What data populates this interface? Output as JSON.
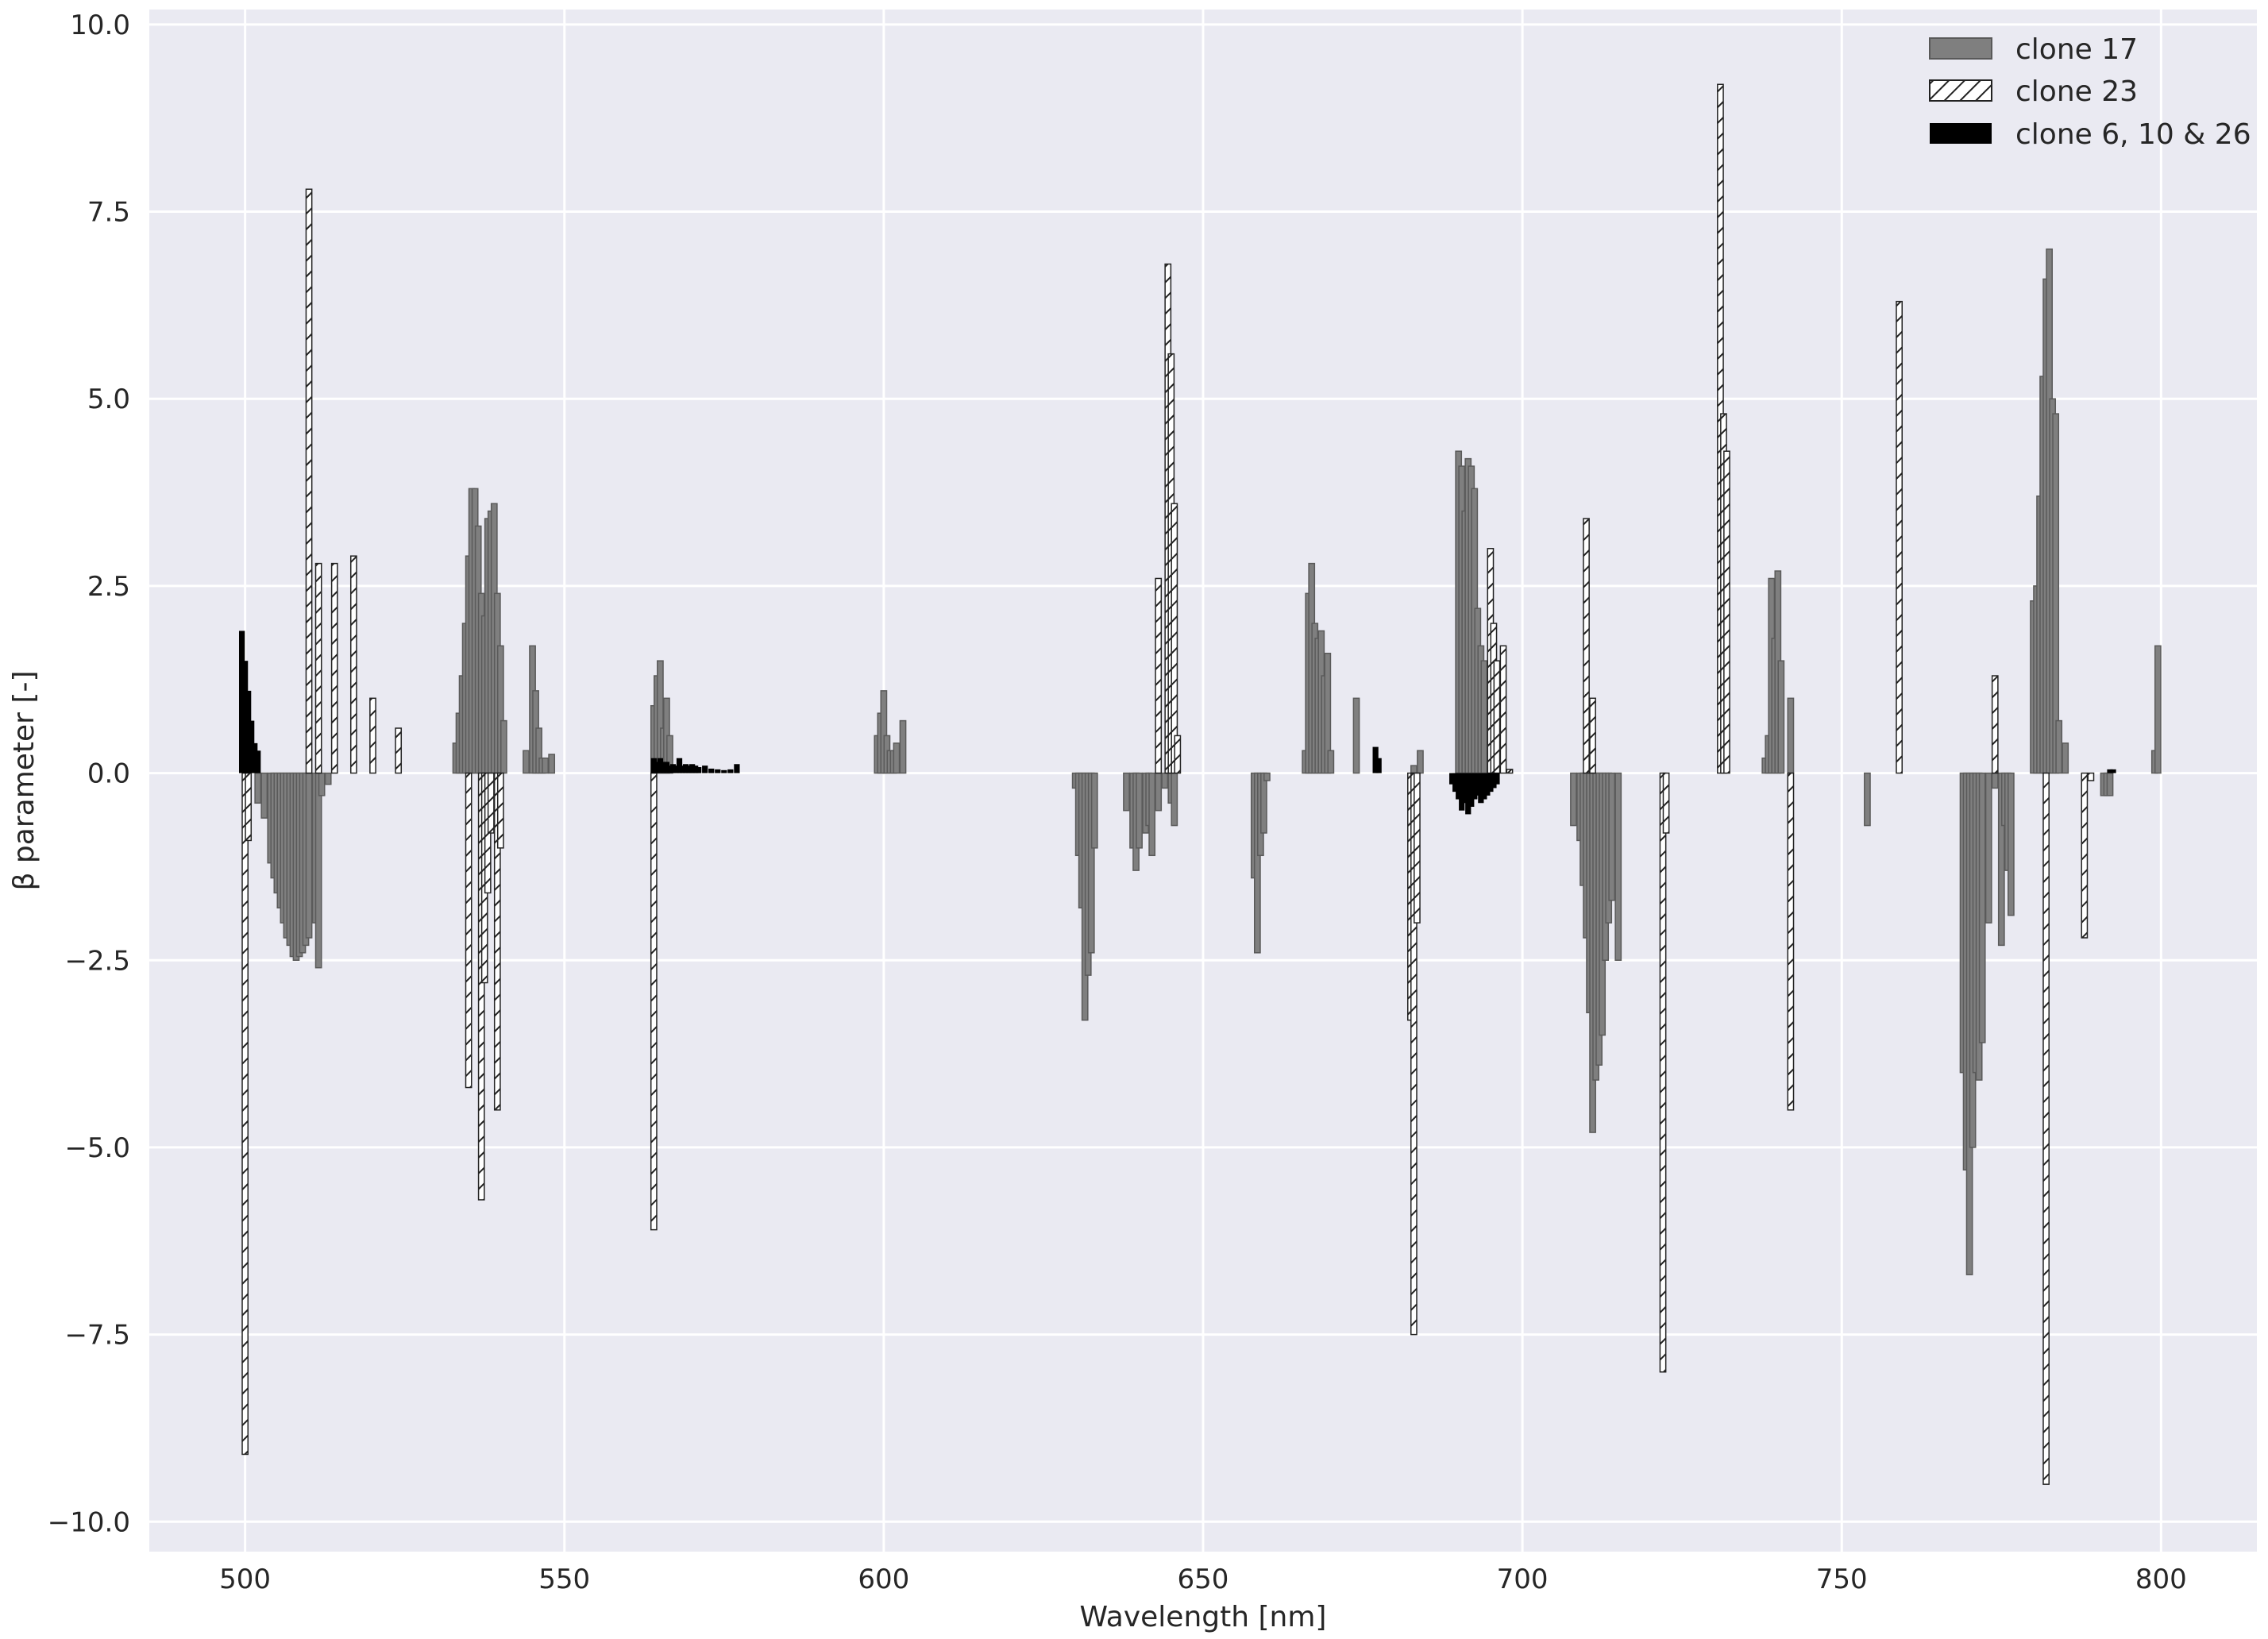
{
  "chart_data": {
    "type": "bar",
    "xlabel": "Wavelength [nm]",
    "ylabel": "β parameter [-]",
    "xlim": [
      485,
      815
    ],
    "ylim": [
      -10.4,
      10.2
    ],
    "xticks": [
      "500",
      "550",
      "600",
      "650",
      "700",
      "750",
      "800"
    ],
    "yticks": [
      "10.0",
      "7.5",
      "5.0",
      "2.5",
      "0.0",
      "−2.5",
      "−5.0",
      "−7.5",
      "−10.0"
    ],
    "grid": true,
    "legend_position": "top-right",
    "background": "#eaeaf2",
    "bar_width_nm": 0.9,
    "series": [
      {
        "name": "clone 17",
        "style": "solid-gray",
        "color": "#7f7f7f",
        "points": [
          [
            502,
            -0.4
          ],
          [
            503,
            -0.6
          ],
          [
            504,
            -1.2
          ],
          [
            504.5,
            -1.4
          ],
          [
            505,
            -1.6
          ],
          [
            505.5,
            -1.8
          ],
          [
            506,
            -2.0
          ],
          [
            506.5,
            -2.2
          ],
          [
            507,
            -2.3
          ],
          [
            507.5,
            -2.45
          ],
          [
            508,
            -2.5
          ],
          [
            508.5,
            -2.45
          ],
          [
            509,
            -2.4
          ],
          [
            509.5,
            -2.3
          ],
          [
            510,
            -2.2
          ],
          [
            511,
            -2.0
          ],
          [
            511.5,
            -2.6
          ],
          [
            512,
            -0.3
          ],
          [
            513,
            -0.15
          ],
          [
            533,
            0.4
          ],
          [
            533.5,
            0.8
          ],
          [
            534,
            1.3
          ],
          [
            534.5,
            2.0
          ],
          [
            535,
            2.9
          ],
          [
            535.5,
            3.8
          ],
          [
            536,
            3.8
          ],
          [
            536.5,
            3.3
          ],
          [
            537,
            2.4
          ],
          [
            537.5,
            2.1
          ],
          [
            538,
            3.4
          ],
          [
            538.5,
            3.5
          ],
          [
            539,
            3.6
          ],
          [
            539.5,
            2.4
          ],
          [
            540,
            1.7
          ],
          [
            540.5,
            0.7
          ],
          [
            544,
            0.3
          ],
          [
            545,
            1.7
          ],
          [
            545.5,
            1.1
          ],
          [
            546,
            0.6
          ],
          [
            546.5,
            0.2
          ],
          [
            547,
            0.2
          ],
          [
            548,
            0.25
          ],
          [
            564,
            0.9
          ],
          [
            564.5,
            1.3
          ],
          [
            565,
            1.5
          ],
          [
            565.5,
            0.6
          ],
          [
            566,
            1.0
          ],
          [
            566.5,
            0.5
          ],
          [
            599,
            0.5
          ],
          [
            599.5,
            0.8
          ],
          [
            600,
            1.1
          ],
          [
            600.5,
            0.5
          ],
          [
            601,
            0.3
          ],
          [
            601.5,
            0.3
          ],
          [
            602,
            0.4
          ],
          [
            603,
            0.7
          ],
          [
            630,
            -0.2
          ],
          [
            630.5,
            -1.1
          ],
          [
            631,
            -1.8
          ],
          [
            631.5,
            -3.3
          ],
          [
            632,
            -2.7
          ],
          [
            632.5,
            -2.4
          ],
          [
            633,
            -1.0
          ],
          [
            638,
            -0.5
          ],
          [
            639,
            -1.0
          ],
          [
            639.5,
            -1.3
          ],
          [
            640,
            -1.0
          ],
          [
            641,
            -0.8
          ],
          [
            641.5,
            -0.7
          ],
          [
            642,
            -1.1
          ],
          [
            643,
            -0.5
          ],
          [
            644,
            -0.2
          ],
          [
            645,
            -0.4
          ],
          [
            645.5,
            -0.7
          ],
          [
            658,
            -1.4
          ],
          [
            658.5,
            -2.4
          ],
          [
            659,
            -1.1
          ],
          [
            659.5,
            -0.8
          ],
          [
            660,
            -0.1
          ],
          [
            666,
            0.3
          ],
          [
            666.5,
            2.4
          ],
          [
            667,
            2.8
          ],
          [
            667.5,
            2.0
          ],
          [
            668,
            1.8
          ],
          [
            668.5,
            1.9
          ],
          [
            669,
            1.3
          ],
          [
            669.5,
            1.6
          ],
          [
            670,
            0.3
          ],
          [
            674,
            1.0
          ],
          [
            683,
            0.1
          ],
          [
            684,
            0.3
          ],
          [
            690,
            4.3
          ],
          [
            690.5,
            4.1
          ],
          [
            691,
            3.5
          ],
          [
            691.5,
            4.2
          ],
          [
            692,
            4.1
          ],
          [
            692.5,
            3.8
          ],
          [
            693,
            2.2
          ],
          [
            693.5,
            1.7
          ],
          [
            694,
            1.5
          ],
          [
            708,
            -0.7
          ],
          [
            709,
            -0.9
          ],
          [
            709.5,
            -1.5
          ],
          [
            710,
            -2.2
          ],
          [
            710.5,
            -3.2
          ],
          [
            711,
            -4.8
          ],
          [
            711.5,
            -4.1
          ],
          [
            712,
            -3.9
          ],
          [
            712.5,
            -3.5
          ],
          [
            713,
            -2.5
          ],
          [
            713.5,
            -2.0
          ],
          [
            714,
            -1.7
          ],
          [
            715,
            -2.5
          ],
          [
            738,
            0.2
          ],
          [
            738.5,
            0.5
          ],
          [
            739,
            2.6
          ],
          [
            739.5,
            1.8
          ],
          [
            740,
            2.7
          ],
          [
            740.5,
            1.5
          ],
          [
            742,
            1.0
          ],
          [
            754,
            -0.7
          ],
          [
            769,
            -4.0
          ],
          [
            769.5,
            -5.3
          ],
          [
            770,
            -6.7
          ],
          [
            770.5,
            -5.0
          ],
          [
            771,
            -4.0
          ],
          [
            771.5,
            -4.1
          ],
          [
            772,
            -3.6
          ],
          [
            773,
            -2.0
          ],
          [
            774,
            -0.2
          ],
          [
            775,
            -2.3
          ],
          [
            775.5,
            -0.7
          ],
          [
            776,
            -1.3
          ],
          [
            776.5,
            -1.9
          ],
          [
            780,
            2.3
          ],
          [
            780.5,
            2.5
          ],
          [
            781,
            3.7
          ],
          [
            781.5,
            5.3
          ],
          [
            782,
            6.6
          ],
          [
            782.5,
            7.0
          ],
          [
            783,
            5.0
          ],
          [
            783.5,
            4.8
          ],
          [
            784,
            0.7
          ],
          [
            785,
            0.4
          ],
          [
            791,
            -0.3
          ],
          [
            791.5,
            -0.3
          ],
          [
            792,
            -0.3
          ],
          [
            799,
            0.3
          ],
          [
            799.5,
            1.7
          ]
        ]
      },
      {
        "name": "clone 23",
        "style": "hatched",
        "color": "#ffffff",
        "points": [
          [
            500,
            -9.1
          ],
          [
            500.5,
            -0.9
          ],
          [
            510,
            7.8
          ],
          [
            511.5,
            2.8
          ],
          [
            514,
            2.8
          ],
          [
            517,
            2.9
          ],
          [
            520,
            1.0
          ],
          [
            524,
            0.6
          ],
          [
            535,
            -4.2
          ],
          [
            537,
            -5.7
          ],
          [
            537.5,
            -2.8
          ],
          [
            538,
            -1.6
          ],
          [
            538.5,
            -0.8
          ],
          [
            539.5,
            -4.5
          ],
          [
            540,
            -1.0
          ],
          [
            564,
            -6.1
          ],
          [
            643,
            2.6
          ],
          [
            644.5,
            6.8
          ],
          [
            645,
            5.6
          ],
          [
            645.5,
            3.6
          ],
          [
            646,
            0.5
          ],
          [
            682.5,
            -3.3
          ],
          [
            683,
            -7.5
          ],
          [
            683.5,
            -2.0
          ],
          [
            695,
            3.0
          ],
          [
            695.5,
            2.0
          ],
          [
            696,
            1.5
          ],
          [
            697,
            1.7
          ],
          [
            698,
            0.05
          ],
          [
            710,
            3.4
          ],
          [
            711,
            1.0
          ],
          [
            722,
            -8.0
          ],
          [
            722.5,
            -0.8
          ],
          [
            731,
            9.2
          ],
          [
            731.5,
            4.8
          ],
          [
            732,
            4.3
          ],
          [
            742,
            -4.5
          ],
          [
            759,
            6.3
          ],
          [
            774,
            1.3
          ],
          [
            782,
            -9.5
          ],
          [
            788,
            -2.2
          ],
          [
            789,
            -0.1
          ]
        ]
      },
      {
        "name": "clone 6, 10 & 26",
        "style": "solid-black",
        "color": "#000000",
        "points": [
          [
            499.5,
            1.9
          ],
          [
            500,
            1.5
          ],
          [
            500.5,
            1.1
          ],
          [
            501,
            0.7
          ],
          [
            501.5,
            0.4
          ],
          [
            502,
            0.3
          ],
          [
            564,
            0.2
          ],
          [
            564.5,
            0.15
          ],
          [
            565,
            0.2
          ],
          [
            565.5,
            0.15
          ],
          [
            566,
            0.15
          ],
          [
            566.5,
            0.1
          ],
          [
            567,
            0.12
          ],
          [
            567.5,
            0.1
          ],
          [
            568,
            0.2
          ],
          [
            568.5,
            0.1
          ],
          [
            569,
            0.12
          ],
          [
            569.5,
            0.1
          ],
          [
            570,
            0.12
          ],
          [
            570.5,
            0.1
          ],
          [
            571,
            0.08
          ],
          [
            572,
            0.1
          ],
          [
            573,
            0.06
          ],
          [
            574,
            0.05
          ],
          [
            575,
            0.04
          ],
          [
            576,
            0.05
          ],
          [
            577,
            0.12
          ],
          [
            677,
            0.35
          ],
          [
            677.5,
            0.2
          ],
          [
            689,
            -0.15
          ],
          [
            689.5,
            -0.25
          ],
          [
            690,
            -0.35
          ],
          [
            690.5,
            -0.5
          ],
          [
            691,
            -0.4
          ],
          [
            691.5,
            -0.55
          ],
          [
            692,
            -0.45
          ],
          [
            692.5,
            -0.35
          ],
          [
            693,
            -0.3
          ],
          [
            693.5,
            -0.4
          ],
          [
            694,
            -0.35
          ],
          [
            694.5,
            -0.3
          ],
          [
            695,
            -0.25
          ],
          [
            695.5,
            -0.2
          ],
          [
            696,
            -0.15
          ],
          [
            792,
            0.05
          ],
          [
            792.5,
            0.05
          ]
        ]
      }
    ]
  }
}
